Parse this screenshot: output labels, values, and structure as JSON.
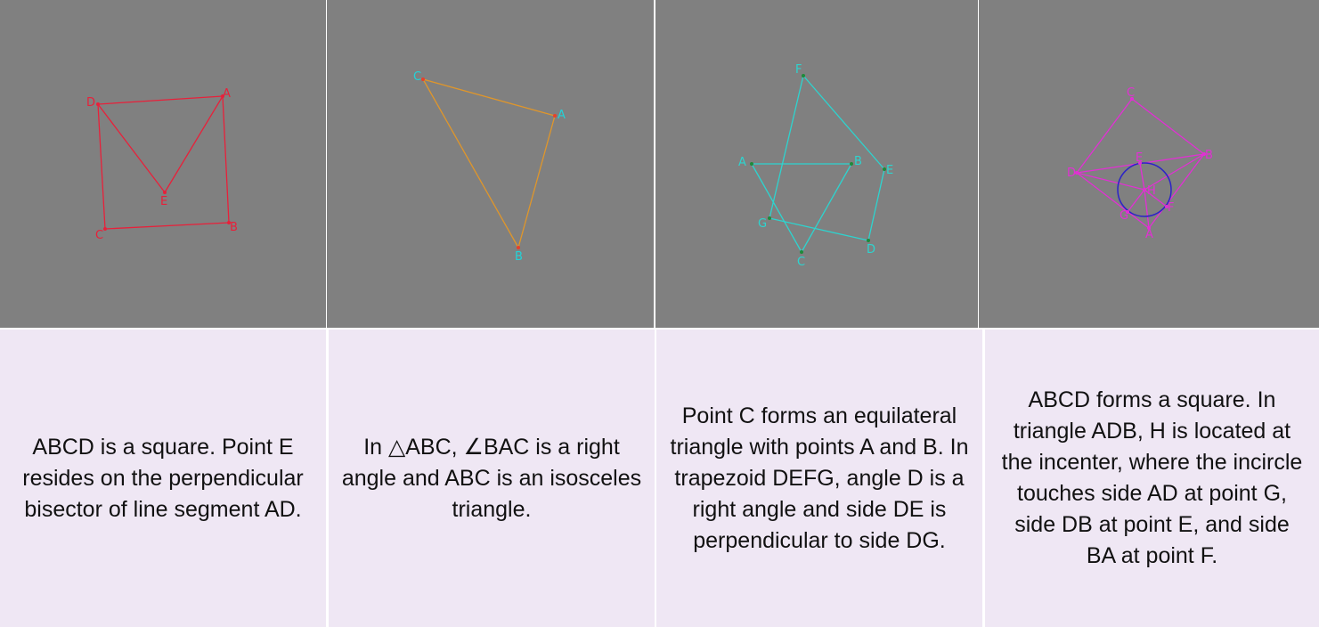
{
  "colors": {
    "figure_background": "#808080",
    "caption_background": "#efe7f4",
    "panel1_stroke": "#e8203a",
    "panel2_stroke": "#e0962a",
    "panel2_label": "#22d3d8",
    "panel3_stroke": "#2dd4cf",
    "panel4_stroke": "#e22fd4",
    "panel4_circle": "#2b22c8"
  },
  "panels": [
    {
      "points": {
        "A": "A",
        "B": "B",
        "C": "C",
        "D": "D",
        "E": "E"
      },
      "caption": "ABCD is a square. Point E resides on the perpendicular bisector of line segment AD."
    },
    {
      "points": {
        "A": "A",
        "B": "B",
        "C": "C"
      },
      "caption": "In △ABC, ∠BAC is a right angle and ABC is an isosceles triangle."
    },
    {
      "points": {
        "A": "A",
        "B": "B",
        "C": "C",
        "D": "D",
        "E": "E",
        "F": "F",
        "G": "G"
      },
      "caption": "Point C forms an equilateral triangle with points A and B. In trapezoid DEFG, angle D is a right angle and side DE is perpendicular to side DG."
    },
    {
      "points": {
        "A": "A",
        "B": "B",
        "C": "C",
        "D": "D",
        "E": "E",
        "F": "F",
        "G": "G",
        "H": "H"
      },
      "caption": "ABCD forms a square. In triangle ADB, H is located at the incenter, where the incircle touches side AD at point G, side DB at point E, and side BA at point F."
    }
  ]
}
